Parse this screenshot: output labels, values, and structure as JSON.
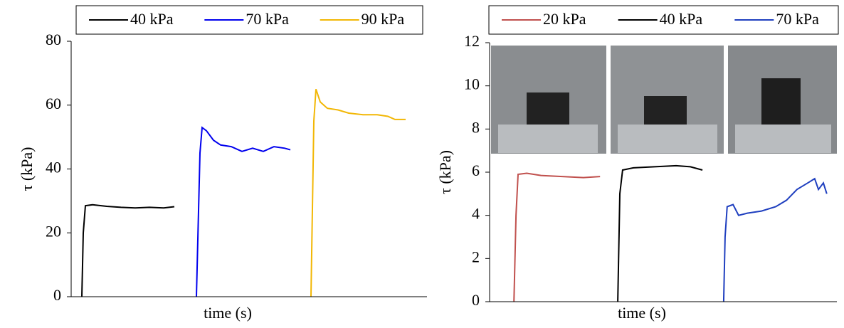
{
  "chart_data": [
    {
      "type": "line",
      "xlabel": "time (s)",
      "ylabel": "τ (kPa)",
      "xlim": [
        0,
        100
      ],
      "ylim": [
        0,
        80
      ],
      "yticks": [
        0,
        20,
        40,
        60,
        80
      ],
      "series": [
        {
          "name": "40 kPa",
          "color": "#000000",
          "x": [
            3,
            3.4,
            4,
            6,
            10,
            14,
            18,
            22,
            26,
            29
          ],
          "values": [
            0,
            20,
            28.5,
            28.8,
            28.3,
            28,
            27.8,
            28,
            27.8,
            28.2
          ]
        },
        {
          "name": "70 kPa",
          "color": "#0000ee",
          "x": [
            35.2,
            36.2,
            36.8,
            38,
            40,
            42,
            45,
            48,
            51,
            54,
            57,
            60,
            61.6
          ],
          "values": [
            0,
            45,
            53,
            52,
            49,
            47.5,
            47,
            45.5,
            46.5,
            45.5,
            47,
            46.5,
            46
          ]
        },
        {
          "name": "90 kPa",
          "color": "#f2b705",
          "x": [
            67.4,
            68.2,
            68.8,
            70,
            72,
            75,
            78,
            82,
            86,
            89,
            91,
            94
          ],
          "values": [
            0,
            55,
            65,
            61,
            59,
            58.5,
            57.5,
            57,
            57,
            56.5,
            55.5,
            55.5
          ]
        }
      ]
    },
    {
      "type": "line",
      "xlabel": "time (s)",
      "ylabel": "τ (kPa)",
      "xlim": [
        0,
        100
      ],
      "ylim": [
        0,
        12
      ],
      "yticks": [
        0,
        2,
        4,
        6,
        8,
        10,
        12
      ],
      "series": [
        {
          "name": "20 kPa",
          "color": "#c0504d",
          "x": [
            7,
            7.6,
            8.2,
            10.7,
            14.8,
            20.9,
            27,
            31.8
          ],
          "values": [
            0,
            4,
            5.9,
            5.95,
            5.85,
            5.8,
            5.75,
            5.8
          ]
        },
        {
          "name": "40 kPa",
          "color": "#000000",
          "x": [
            36.9,
            37.5,
            38.3,
            41.4,
            47.5,
            53.7,
            57.8,
            61.3
          ],
          "values": [
            0,
            5,
            6.1,
            6.2,
            6.25,
            6.3,
            6.25,
            6.1
          ]
        },
        {
          "name": "70 kPa",
          "color": "#1f3fbf",
          "x": [
            67.4,
            67.8,
            68.4,
            70.1,
            71.7,
            74.2,
            78.3,
            82.4,
            85.5,
            88.5,
            91.6,
            93.6,
            94.7,
            96.1,
            97.1
          ],
          "values": [
            0,
            3,
            4.4,
            4.5,
            4.0,
            4.1,
            4.2,
            4.4,
            4.7,
            5.2,
            5.5,
            5.7,
            5.2,
            5.5,
            5.0
          ]
        }
      ]
    }
  ]
}
